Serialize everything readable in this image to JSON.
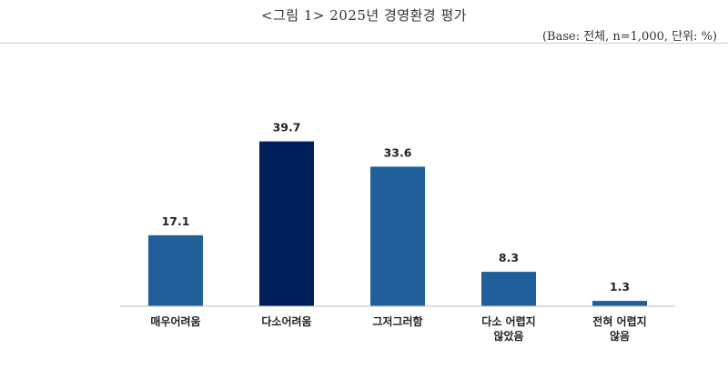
{
  "figure": {
    "title": "<그림 1> 2025년 경영환경 평가",
    "base_note": "(Base: 전체, n=1,000, 단위: %)"
  },
  "chart_data": {
    "type": "bar",
    "categories": [
      [
        "매우어려움"
      ],
      [
        "다소어려움"
      ],
      [
        "그저그러함"
      ],
      [
        "다소 어렵지",
        "않았음"
      ],
      [
        "전혀 어렵지",
        "않음"
      ]
    ],
    "values": [
      17.1,
      39.7,
      33.6,
      8.3,
      1.3
    ],
    "value_labels": [
      "17.1",
      "39.7",
      "33.6",
      "8.3",
      "1.3"
    ],
    "ylim": [
      0,
      40
    ],
    "grid": false,
    "legend": "none",
    "colors": {
      "bar": "#215F9A",
      "highlight": "#00205B",
      "axis": "#BFBFBF"
    },
    "highlight_index": 1
  }
}
